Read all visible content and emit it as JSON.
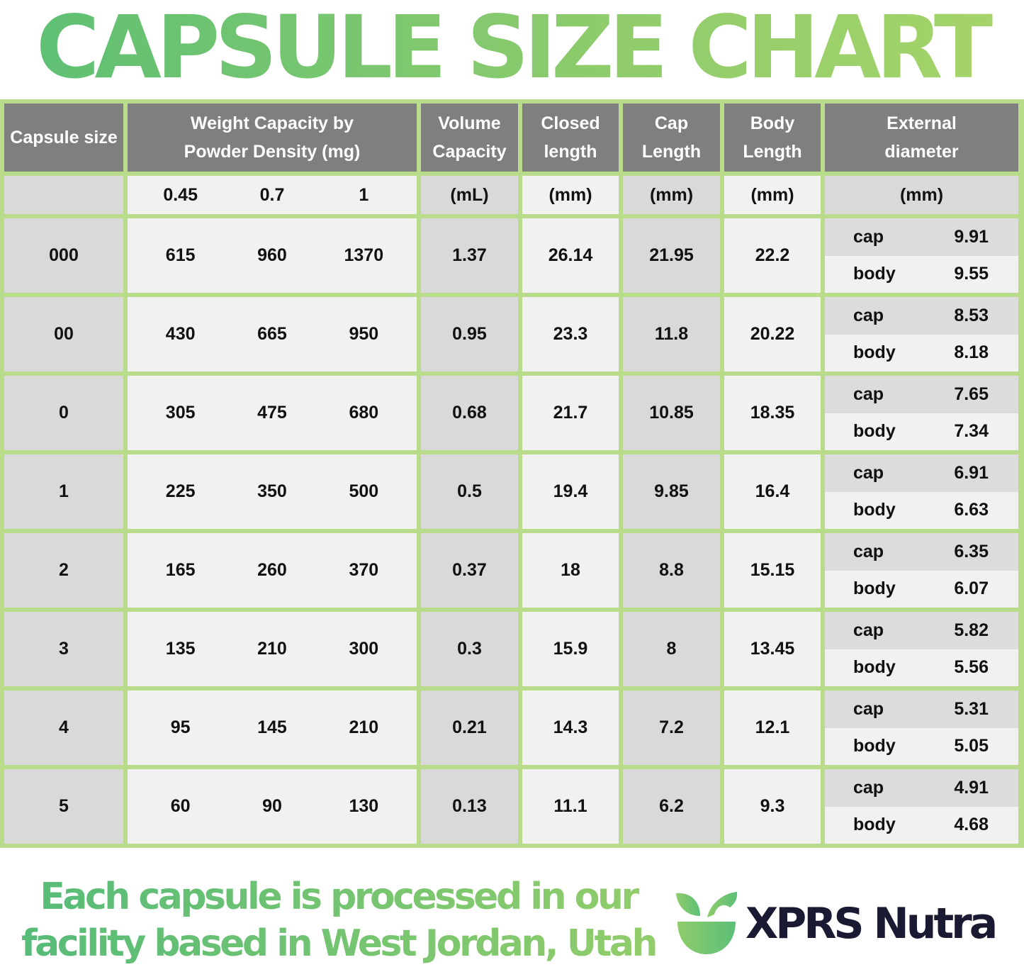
{
  "title": "CAPSULE SIZE CHART",
  "colors": {
    "border": "#b8dc89",
    "header": "#7f7f7f",
    "title_green": "#6cc373",
    "brand": "#1b1a33"
  },
  "headers": {
    "size": "Capsule size",
    "weight_line1": "Weight Capacity by",
    "weight_line2": "Powder Density (mg)",
    "volume_line1": "Volume",
    "volume_line2": "Capacity",
    "closed_line1": "Closed",
    "closed_line2": "length",
    "cap_line1": "Cap",
    "cap_line2": "Length",
    "body_line1": "Body",
    "body_line2": "Length",
    "ext_line1": "External",
    "ext_line2": "diameter"
  },
  "units": {
    "densities": [
      "0.45",
      "0.7",
      "1"
    ],
    "volume": "(mL)",
    "closed": "(mm)",
    "cap": "(mm)",
    "body": "(mm)",
    "ext": "(mm)"
  },
  "rows": [
    {
      "size": "000",
      "w": [
        "615",
        "960",
        "1370"
      ],
      "volume": "1.37",
      "closed": "26.14",
      "cap": "21.95",
      "body": "22.2",
      "ext_cap": "9.91",
      "ext_body": "9.55"
    },
    {
      "size": "00",
      "w": [
        "430",
        "665",
        "950"
      ],
      "volume": "0.95",
      "closed": "23.3",
      "cap": "11.8",
      "body": "20.22",
      "ext_cap": "8.53",
      "ext_body": "8.18"
    },
    {
      "size": "0",
      "w": [
        "305",
        "475",
        "680"
      ],
      "volume": "0.68",
      "closed": "21.7",
      "cap": "10.85",
      "body": "18.35",
      "ext_cap": "7.65",
      "ext_body": "7.34"
    },
    {
      "size": "1",
      "w": [
        "225",
        "350",
        "500"
      ],
      "volume": "0.5",
      "closed": "19.4",
      "cap": "9.85",
      "body": "16.4",
      "ext_cap": "6.91",
      "ext_body": "6.63"
    },
    {
      "size": "2",
      "w": [
        "165",
        "260",
        "370"
      ],
      "volume": "0.37",
      "closed": "18",
      "cap": "8.8",
      "body": "15.15",
      "ext_cap": "6.35",
      "ext_body": "6.07"
    },
    {
      "size": "3",
      "w": [
        "135",
        "210",
        "300"
      ],
      "volume": "0.3",
      "closed": "15.9",
      "cap": "8",
      "body": "13.45",
      "ext_cap": "5.82",
      "ext_body": "5.56"
    },
    {
      "size": "4",
      "w": [
        "95",
        "145",
        "210"
      ],
      "volume": "0.21",
      "closed": "14.3",
      "cap": "7.2",
      "body": "12.1",
      "ext_cap": "5.31",
      "ext_body": "5.05"
    },
    {
      "size": "5",
      "w": [
        "60",
        "90",
        "130"
      ],
      "volume": "0.13",
      "closed": "11.1",
      "cap": "6.2",
      "body": "9.3",
      "ext_cap": "4.91",
      "ext_body": "4.68"
    }
  ],
  "ext_labels": {
    "cap": "cap",
    "body": "body"
  },
  "footer": {
    "line1": "Each capsule is processed in our",
    "line2": "facility based in West Jordan, Utah"
  },
  "brand": {
    "name": "XPRS Nutra",
    "logo_icon": "leaf-bowl-icon"
  }
}
